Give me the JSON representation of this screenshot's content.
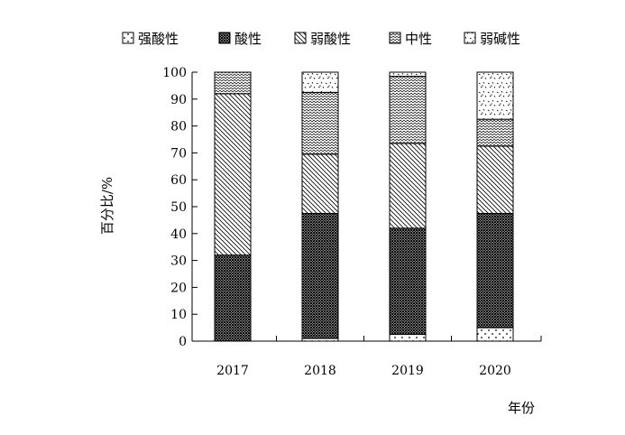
{
  "chart_data": {
    "type": "bar",
    "stacked": true,
    "categories": [
      "2017",
      "2018",
      "2019",
      "2020"
    ],
    "series": [
      {
        "name": "强酸性",
        "values": [
          0,
          1,
          2.5,
          5
        ]
      },
      {
        "name": "酸性",
        "values": [
          32,
          46.5,
          39.5,
          42.5
        ]
      },
      {
        "name": "弱酸性",
        "values": [
          60,
          22,
          31.5,
          25
        ]
      },
      {
        "name": "中性",
        "values": [
          8,
          23,
          25,
          10
        ]
      },
      {
        "name": "弱碱性",
        "values": [
          0,
          7.5,
          1.5,
          17.5
        ]
      }
    ],
    "xlabel": "年份",
    "ylabel": "百分比/%",
    "ylim": [
      0,
      100
    ],
    "yticks": [
      0,
      10,
      20,
      30,
      40,
      50,
      60,
      70,
      80,
      90,
      100
    ],
    "legend_position": "top",
    "grid": false,
    "colors": {
      "axis": "#000000",
      "bar_outline": "#000000",
      "fill_base": "#ffffff"
    }
  }
}
